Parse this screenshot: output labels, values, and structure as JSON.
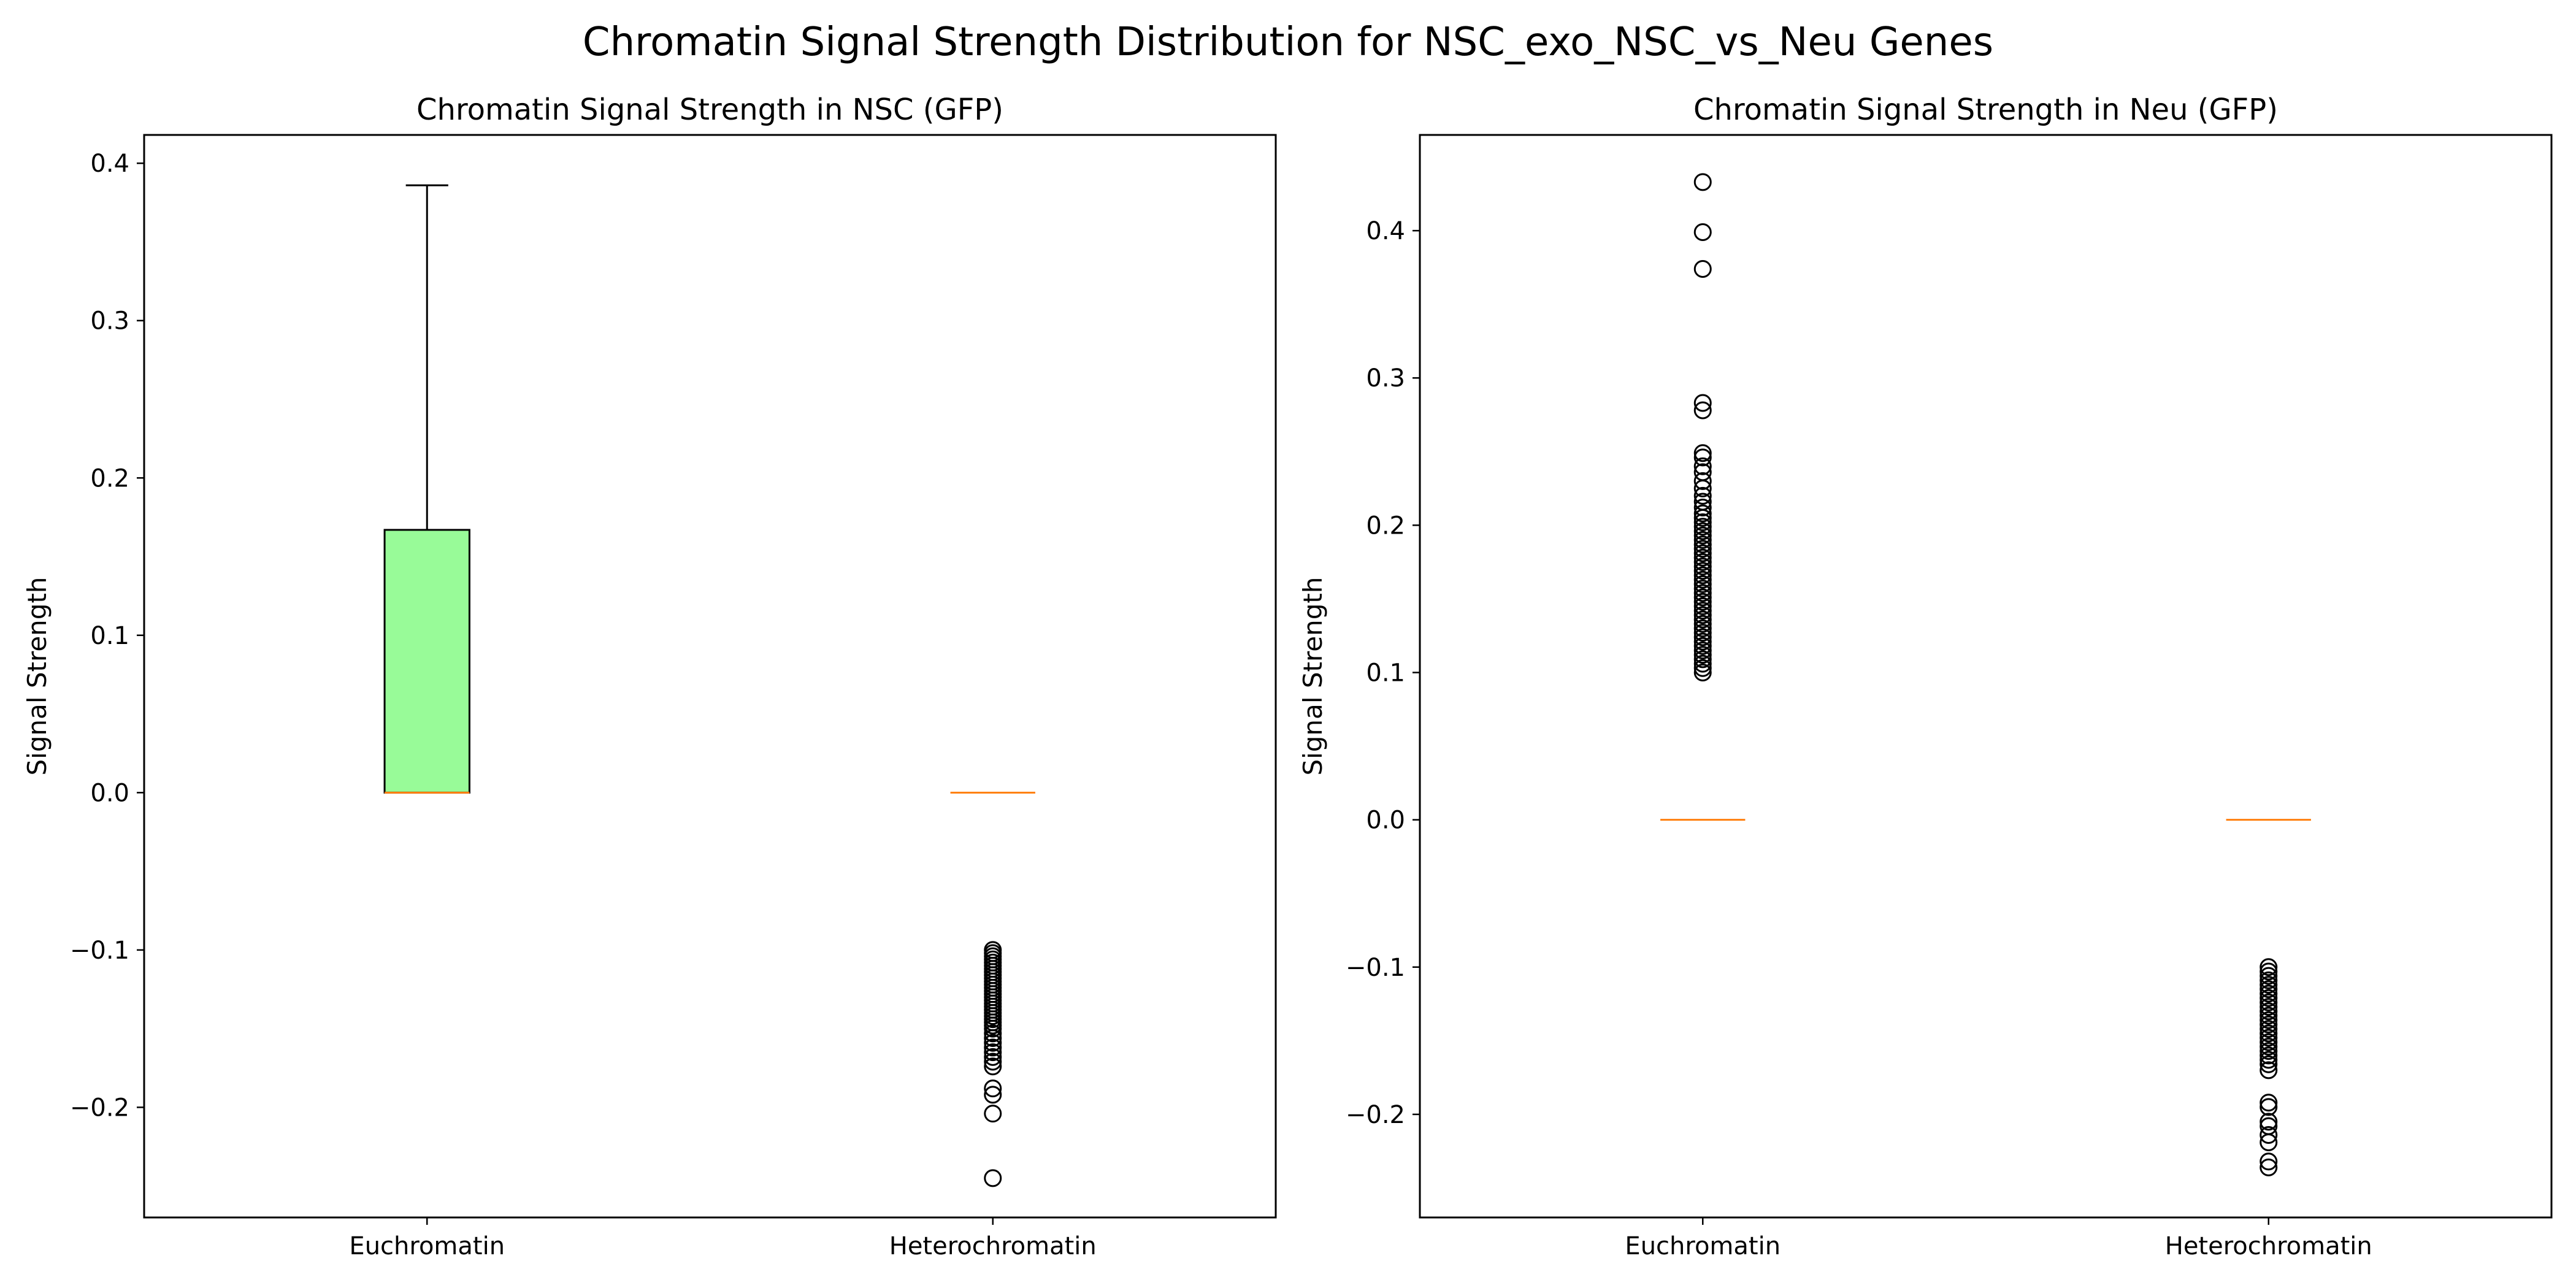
{
  "figure": {
    "title": "Chromatin Signal Strength Distribution for NSC_exo_NSC_vs_Neu Genes"
  },
  "chart_data": [
    {
      "type": "box",
      "title": "Chromatin Signal Strength in NSC (GFP)",
      "xlabel": "",
      "ylabel": "Signal Strength",
      "categories": [
        "Euchromatin",
        "Heterochromatin"
      ],
      "ylim": [
        -0.27,
        0.418
      ],
      "yticks": [
        -0.2,
        -0.1,
        0.0,
        0.1,
        0.2,
        0.3,
        0.4
      ],
      "ytick_labels": [
        "−0.2",
        "−0.1",
        "0.0",
        "0.1",
        "0.2",
        "0.3",
        "0.4"
      ],
      "grid": false,
      "boxes": [
        {
          "category": "Euchromatin",
          "whislo": 0.0,
          "q1": 0.0,
          "median": 0.0,
          "q3": 0.167,
          "whishi": 0.386,
          "fill": "#98fb98",
          "fliers": []
        },
        {
          "category": "Heterochromatin",
          "whislo": 0.0,
          "q1": 0.0,
          "median": 0.0,
          "q3": 0.0,
          "whishi": 0.0,
          "fill": "#98fb98",
          "fliers": [
            -0.1,
            -0.102,
            -0.104,
            -0.106,
            -0.108,
            -0.11,
            -0.112,
            -0.114,
            -0.116,
            -0.118,
            -0.12,
            -0.122,
            -0.124,
            -0.126,
            -0.128,
            -0.13,
            -0.132,
            -0.134,
            -0.136,
            -0.138,
            -0.14,
            -0.142,
            -0.144,
            -0.146,
            -0.148,
            -0.15,
            -0.153,
            -0.156,
            -0.159,
            -0.162,
            -0.165,
            -0.168,
            -0.171,
            -0.174,
            -0.188,
            -0.192,
            -0.204,
            -0.245
          ]
        }
      ]
    },
    {
      "type": "box",
      "title": "Chromatin Signal Strength in Neu (GFP)",
      "xlabel": "",
      "ylabel": "Signal Strength",
      "categories": [
        "Euchromatin",
        "Heterochromatin"
      ],
      "ylim": [
        -0.27,
        0.465
      ],
      "yticks": [
        -0.2,
        -0.1,
        0.0,
        0.1,
        0.2,
        0.3,
        0.4
      ],
      "ytick_labels": [
        "−0.2",
        "−0.1",
        "0.0",
        "0.1",
        "0.2",
        "0.3",
        "0.4"
      ],
      "grid": false,
      "boxes": [
        {
          "category": "Euchromatin",
          "whislo": 0.0,
          "q1": 0.0,
          "median": 0.0,
          "q3": 0.0,
          "whishi": 0.0,
          "fill": "#98fb98",
          "fliers": [
            0.1,
            0.103,
            0.106,
            0.109,
            0.112,
            0.115,
            0.118,
            0.121,
            0.124,
            0.127,
            0.13,
            0.133,
            0.136,
            0.139,
            0.142,
            0.145,
            0.148,
            0.151,
            0.154,
            0.157,
            0.16,
            0.163,
            0.166,
            0.169,
            0.172,
            0.175,
            0.178,
            0.181,
            0.184,
            0.187,
            0.19,
            0.193,
            0.196,
            0.199,
            0.202,
            0.205,
            0.208,
            0.212,
            0.216,
            0.22,
            0.225,
            0.23,
            0.236,
            0.24,
            0.246,
            0.249,
            0.278,
            0.283,
            0.374,
            0.399,
            0.433
          ]
        },
        {
          "category": "Heterochromatin",
          "whislo": 0.0,
          "q1": 0.0,
          "median": 0.0,
          "q3": 0.0,
          "whishi": 0.0,
          "fill": "#98fb98",
          "fliers": [
            -0.1,
            -0.103,
            -0.106,
            -0.109,
            -0.112,
            -0.115,
            -0.118,
            -0.121,
            -0.124,
            -0.127,
            -0.13,
            -0.133,
            -0.136,
            -0.139,
            -0.142,
            -0.145,
            -0.148,
            -0.151,
            -0.154,
            -0.157,
            -0.16,
            -0.163,
            -0.166,
            -0.17,
            -0.192,
            -0.195,
            -0.205,
            -0.208,
            -0.214,
            -0.219,
            -0.232,
            -0.236
          ]
        }
      ]
    }
  ]
}
